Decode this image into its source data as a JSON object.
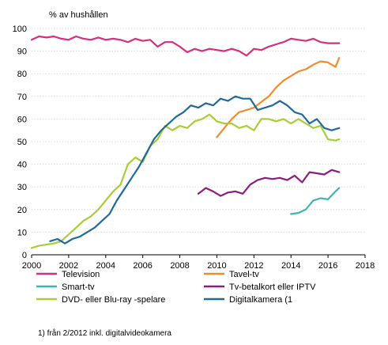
{
  "chart_data": {
    "type": "line",
    "ylabel": "% av hushållen",
    "xlim": [
      2000,
      2018
    ],
    "ylim": [
      0,
      100
    ],
    "x_ticks": [
      2000,
      2002,
      2004,
      2006,
      2008,
      2010,
      2012,
      2014,
      2016,
      2018
    ],
    "y_ticks": [
      0,
      10,
      20,
      30,
      40,
      50,
      60,
      70,
      80,
      90,
      100
    ],
    "grid": true,
    "legend_position": "bottom",
    "series": [
      {
        "name": "Television",
        "color": "#d62f7e",
        "x": [
          2000,
          2000.4,
          2000.8,
          2001.2,
          2001.6,
          2002,
          2002.4,
          2002.8,
          2003.2,
          2003.6,
          2004,
          2004.4,
          2004.8,
          2005.2,
          2005.6,
          2006,
          2006.4,
          2006.8,
          2007.2,
          2007.6,
          2008,
          2008.4,
          2008.8,
          2009.2,
          2009.6,
          2010,
          2010.4,
          2010.8,
          2011.2,
          2011.6,
          2012,
          2012.4,
          2012.8,
          2013.2,
          2013.6,
          2014,
          2014.4,
          2014.8,
          2015.2,
          2015.6,
          2016,
          2016.4,
          2016.6
        ],
        "values": [
          95,
          96.5,
          96,
          96.5,
          95.5,
          95,
          96.5,
          95.5,
          95,
          96,
          95,
          95.5,
          95,
          94,
          95.5,
          94.5,
          95,
          92,
          94,
          94,
          92,
          89.5,
          91,
          90,
          91,
          90.5,
          90,
          91,
          90,
          88,
          91,
          90.5,
          92,
          93,
          94,
          95.5,
          95,
          94.5,
          95.5,
          94,
          93.5,
          93.5,
          93.5
        ]
      },
      {
        "name": "Tavel-tv",
        "color": "#f08c2e",
        "x": [
          2010,
          2010.4,
          2010.8,
          2011.2,
          2011.6,
          2012,
          2012.4,
          2012.8,
          2013.2,
          2013.6,
          2014,
          2014.4,
          2014.8,
          2015.2,
          2015.6,
          2016,
          2016.4,
          2016.6
        ],
        "values": [
          52,
          56,
          60,
          63,
          64,
          65,
          67.5,
          70,
          74,
          77,
          79,
          81,
          82,
          84,
          85.5,
          85,
          83,
          87
        ]
      },
      {
        "name": "Smart-tv",
        "color": "#3bb8ae",
        "x": [
          2014,
          2014.4,
          2014.8,
          2015.2,
          2015.6,
          2016,
          2016.4,
          2016.6
        ],
        "values": [
          18,
          18.5,
          20,
          24,
          25,
          24.5,
          28,
          29.5
        ]
      },
      {
        "name": "Tv-betalkort eller IPTV",
        "color": "#8c1d7f",
        "x": [
          2009,
          2009.4,
          2009.8,
          2010.2,
          2010.6,
          2011,
          2011.4,
          2011.8,
          2012.2,
          2012.6,
          2013,
          2013.4,
          2013.8,
          2014.2,
          2014.6,
          2015,
          2015.4,
          2015.8,
          2016.2,
          2016.6
        ],
        "values": [
          27,
          29.5,
          28,
          26,
          27.5,
          28,
          27,
          31,
          33,
          34,
          33.5,
          34,
          33,
          35,
          32,
          36.5,
          36,
          35.5,
          37.5,
          36.5
        ]
      },
      {
        "name": "DVD- eller Blu-ray -spelare",
        "color": "#a8cd38",
        "x": [
          2000,
          2000.4,
          2000.8,
          2001.2,
          2001.6,
          2002,
          2002.4,
          2002.8,
          2003.2,
          2003.6,
          2004,
          2004.4,
          2004.8,
          2005.2,
          2005.6,
          2006,
          2006.4,
          2006.8,
          2007.2,
          2007.6,
          2008,
          2008.4,
          2008.8,
          2009.2,
          2009.6,
          2010,
          2010.4,
          2010.8,
          2011.2,
          2011.6,
          2012,
          2012.4,
          2012.8,
          2013.2,
          2013.6,
          2014,
          2014.4,
          2014.8,
          2015.2,
          2015.6,
          2016,
          2016.4,
          2016.6
        ],
        "values": [
          3,
          4,
          4.5,
          5,
          6,
          9,
          12,
          15,
          17,
          20,
          24,
          28,
          31,
          40,
          43,
          41,
          48,
          51,
          57,
          55,
          57,
          56,
          59,
          60,
          62,
          59,
          58,
          58,
          56,
          57,
          55,
          60,
          60,
          59,
          60,
          58,
          60,
          58,
          56,
          57,
          51,
          50.5,
          51
        ]
      },
      {
        "name": "Digitalkamera (1",
        "color": "#1f6a9a",
        "x": [
          2001,
          2001.4,
          2001.8,
          2002.2,
          2002.6,
          2003,
          2003.4,
          2003.8,
          2004.2,
          2004.6,
          2005,
          2005.4,
          2005.8,
          2006.2,
          2006.6,
          2007,
          2007.4,
          2007.8,
          2008.2,
          2008.6,
          2009,
          2009.4,
          2009.8,
          2010.2,
          2010.6,
          2011,
          2011.4,
          2011.8,
          2012.2,
          2012.6,
          2013,
          2013.4,
          2013.8,
          2014.2,
          2014.6,
          2015,
          2015.4,
          2015.8,
          2016.2,
          2016.6
        ],
        "values": [
          6,
          7,
          5,
          7,
          8,
          10,
          12,
          15,
          18,
          24,
          29,
          34,
          39,
          45,
          51,
          55,
          58,
          61,
          63,
          66,
          65,
          67,
          66,
          69,
          68,
          70,
          69,
          69,
          64,
          65,
          66,
          68,
          66,
          63,
          62,
          58,
          60,
          56,
          55,
          56
        ]
      }
    ],
    "footnote": "1) från 2/2012 inkl. digitalvideokamera"
  }
}
